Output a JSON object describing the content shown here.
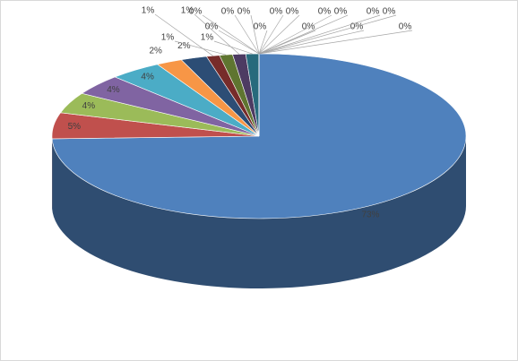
{
  "chart_data": {
    "type": "pie3d",
    "values": [
      73,
      5,
      4,
      4,
      4,
      2,
      2,
      1,
      1,
      1,
      1,
      0,
      0,
      0,
      0,
      0,
      0,
      0,
      0,
      0,
      0,
      0,
      0,
      0,
      0
    ],
    "value_labels": [
      "73%",
      "5%",
      "4%",
      "4%",
      "4%",
      "2%",
      "2%",
      "1%",
      "1%",
      "1%",
      "1%",
      "0%",
      "0%",
      "0%",
      "0%",
      "0%",
      "0%",
      "0%",
      "0%",
      "0%",
      "0%",
      "0%",
      "0%",
      "0%",
      "0%"
    ],
    "colors": [
      "#4f81bd",
      "#c0504d",
      "#9bbb59",
      "#8064a2",
      "#4bacc6",
      "#f79646",
      "#2c4d75",
      "#772c2a",
      "#5f7530",
      "#4d3b62",
      "#276a7c",
      "#b65708",
      "#729aca",
      "#cd7371",
      "#afc97a",
      "#9983b5",
      "#6fbdd1",
      "#f9ab6b",
      "#3a67a0",
      "#9f3b38",
      "#7f9d40",
      "#664f83",
      "#348da5",
      "#f38a2c",
      "#95b3d7"
    ]
  }
}
